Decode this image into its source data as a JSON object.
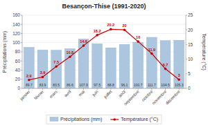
{
  "chart_data": {
    "type": "bar",
    "title": "Besançon-Thise (1991-2020)",
    "categories": [
      "janvier",
      "février",
      "mars",
      "avril",
      "mai",
      "juin",
      "juillet",
      "août",
      "septembre",
      "octobre",
      "novembre",
      "décembre"
    ],
    "series": [
      {
        "name": "Précipitations (mm)",
        "type": "bar",
        "color": "#adc6e0",
        "data_labels": true,
        "values": [
          89.7,
          83.9,
          83.5,
          86.6,
          107.9,
          97.5,
          88.8,
          96.1,
          100.7,
          111.7,
          104.5,
          105.3
        ]
      },
      {
        "name": "Température (°C)",
        "type": "line",
        "color": "#cc0000",
        "marker": "circle",
        "axis": "y2",
        "data_labels": true,
        "values": [
          2.9,
          3.9,
          7.5,
          10.8,
          14.6,
          18.2,
          20.2,
          20,
          16,
          11.9,
          6.7,
          3
        ]
      }
    ],
    "ylabel": "Précipitations (mm)",
    "y2label": "Température (°C)",
    "ylim": [
      0,
      160
    ],
    "yticks": [
      0,
      20,
      40,
      60,
      80,
      100,
      120,
      140,
      160
    ],
    "y2lim": [
      0,
      25
    ],
    "y2ticks": [
      0,
      5,
      10,
      15,
      20,
      25
    ],
    "grid": true,
    "legend": "bottom"
  }
}
